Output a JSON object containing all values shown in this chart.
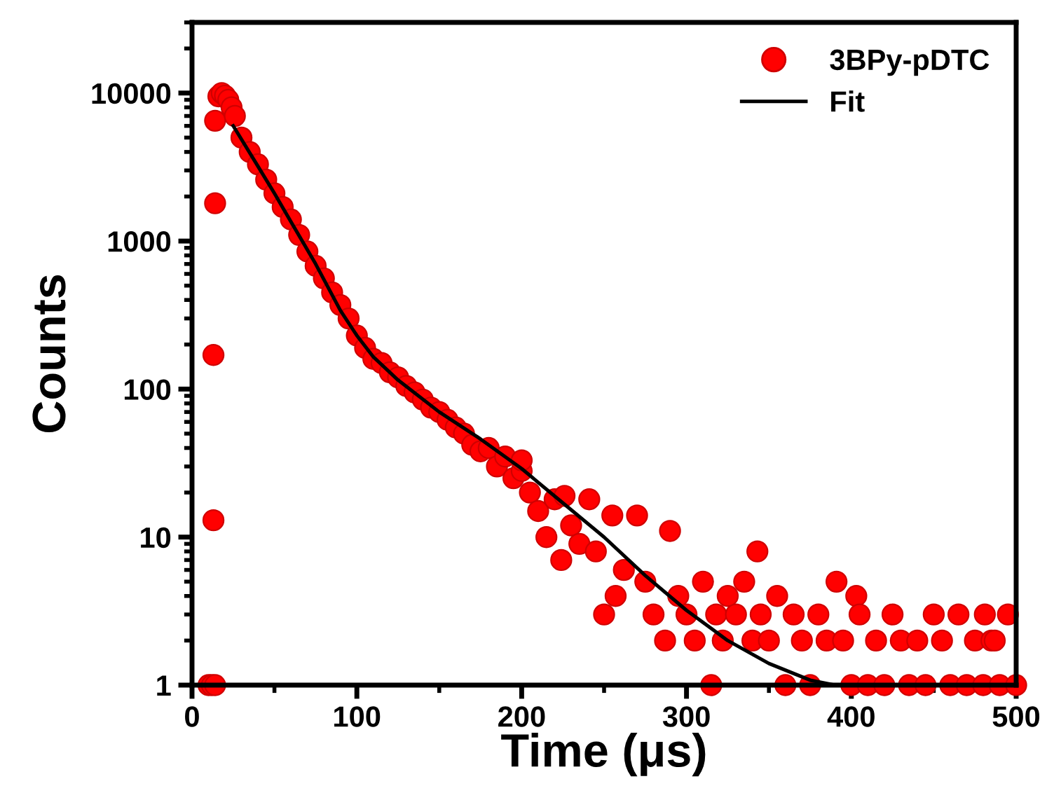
{
  "chart_data": {
    "type": "scatter",
    "xlabel": "Time (μs)",
    "ylabel": "Counts",
    "xlim": [
      0,
      500
    ],
    "ylim": [
      1,
      30000
    ],
    "xticks": [
      0,
      100,
      200,
      300,
      400,
      500
    ],
    "yticks": [
      1,
      10,
      100,
      1000,
      10000
    ],
    "log": "y",
    "grid": false,
    "legend": "top right",
    "marker": "circle",
    "series": [
      {
        "name": "3BPy-pDTC",
        "color": "#ff0000",
        "x": [
          10,
          12,
          14,
          13,
          13,
          14,
          14,
          16,
          18,
          20,
          22,
          24,
          26,
          30,
          35,
          40,
          45,
          50,
          55,
          60,
          65,
          70,
          75,
          80,
          85,
          90,
          95,
          100,
          105,
          110,
          115,
          120,
          125,
          130,
          135,
          140,
          145,
          150,
          155,
          160,
          165,
          170,
          175,
          180,
          185,
          190,
          195,
          200,
          200,
          205,
          210,
          215,
          220,
          224,
          226,
          230,
          235,
          241,
          245,
          250,
          255,
          257,
          262,
          270,
          275,
          280,
          287,
          290,
          295,
          300,
          305,
          310,
          315,
          318,
          322,
          325,
          330,
          335,
          340,
          343,
          345,
          350,
          355,
          360,
          365,
          370,
          375,
          380,
          385,
          391,
          395,
          400,
          403,
          405,
          410,
          415,
          420,
          425,
          430,
          435,
          440,
          445,
          450,
          455,
          460,
          465,
          470,
          475,
          480,
          481,
          485,
          487,
          490,
          495,
          500
        ],
        "values": [
          1,
          1,
          1,
          13,
          170,
          1800,
          6500,
          9500,
          10000,
          9600,
          9000,
          8000,
          7000,
          5000,
          4000,
          3300,
          2600,
          2100,
          1700,
          1400,
          1100,
          850,
          680,
          560,
          450,
          370,
          300,
          230,
          190,
          160,
          150,
          130,
          120,
          105,
          95,
          85,
          75,
          70,
          62,
          55,
          50,
          42,
          38,
          40,
          30,
          35,
          25,
          28,
          33,
          20,
          15,
          10,
          18,
          7,
          19,
          12,
          9,
          18,
          8,
          3,
          14,
          4,
          6,
          14,
          5,
          3,
          2,
          11,
          4,
          3,
          2,
          5,
          1,
          3,
          2,
          4,
          3,
          5,
          2,
          8,
          3,
          2,
          4,
          1,
          3,
          2,
          1,
          3,
          2,
          5,
          2,
          1,
          4,
          3,
          1,
          2,
          1,
          3,
          2,
          1,
          2,
          1,
          3,
          2,
          1,
          3,
          1,
          2,
          1,
          3,
          2,
          2,
          1,
          3,
          1
        ]
      },
      {
        "name": "Fit",
        "type": "line",
        "color": "#000000",
        "marker": "none",
        "line_style": "solid",
        "x": [
          25,
          40,
          50,
          60,
          75,
          90,
          100,
          110,
          125,
          150,
          175,
          200,
          225,
          250,
          275,
          300,
          325,
          350,
          375,
          390
        ],
        "values": [
          6000,
          3200,
          2100,
          1350,
          700,
          340,
          230,
          165,
          115,
          70,
          46,
          29,
          17,
          10,
          5.5,
          3.2,
          2,
          1.4,
          1.08,
          1
        ]
      }
    ]
  }
}
